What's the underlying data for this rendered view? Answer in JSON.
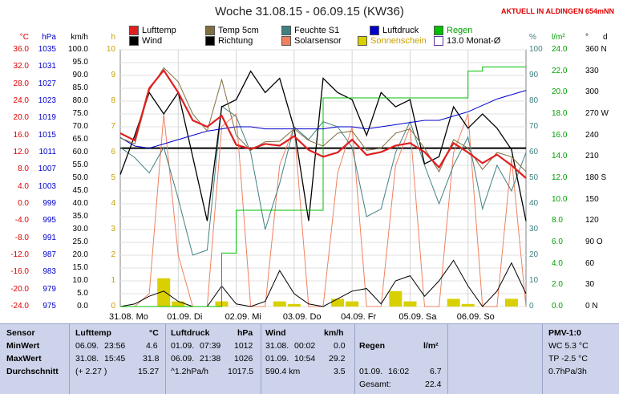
{
  "header": {
    "title": "Woche 31.08.15 - 06.09.15 (KW36)",
    "live": "AKTUELL IN ALDINGEN 654mNN"
  },
  "legend": [
    {
      "label": "Lufttemp",
      "color": "#e02020",
      "style": "fill"
    },
    {
      "label": "Temp 5cm",
      "color": "#807040",
      "style": "fill"
    },
    {
      "label": "Feuchte S1",
      "color": "#408080",
      "style": "fill"
    },
    {
      "label": "Luftdruck",
      "color": "#0000cc",
      "style": "fill"
    },
    {
      "label": "Regen",
      "color": "#00c000",
      "style": "fill"
    },
    {
      "label": "Wind",
      "color": "#000000",
      "style": "fill"
    },
    {
      "label": "Richtung",
      "color": "#000000",
      "style": "fill"
    },
    {
      "label": "Solarsensor",
      "color": "#f08060",
      "style": "fill"
    },
    {
      "label": "Sonnenschein",
      "color": "#d8d000",
      "style": "fill"
    },
    {
      "label": "13.0 Monat-Ø",
      "color": "#6030a0",
      "style": "outline"
    }
  ],
  "axes": {
    "celsius": {
      "unit": "°C",
      "color": "#e00000",
      "ticks": [
        "36.0",
        "32.0",
        "28.0",
        "24.0",
        "20.0",
        "16.0",
        "12.0",
        "8.0",
        "4.0",
        "0.0",
        "-4.0",
        "-8.0",
        "-12.0",
        "-16.0",
        "-20.0",
        "-24.0"
      ]
    },
    "hpa": {
      "unit": "hPa",
      "color": "#0000cc",
      "ticks": [
        "1035",
        "1031",
        "1027",
        "1023",
        "1019",
        "1015",
        "1011",
        "1007",
        "1003",
        "999",
        "995",
        "991",
        "987",
        "983",
        "979",
        "975"
      ]
    },
    "kmh": {
      "unit": "km/h",
      "color": "#000000",
      "ticks": [
        "100.0",
        "95.0",
        "90.0",
        "85.0",
        "80.0",
        "75.0",
        "70.0",
        "65.0",
        "60.0",
        "55.0",
        "50.0",
        "45.0",
        "40.0",
        "35.0",
        "30.0",
        "25.0",
        "20.0",
        "15.0",
        "10.0",
        "5.0",
        "0.0"
      ]
    },
    "hours": {
      "unit": "h",
      "color": "#c8a000",
      "ticks": [
        "10",
        "9",
        "8",
        "7",
        "6",
        "5",
        "4",
        "3",
        "2",
        "1",
        "0"
      ]
    },
    "percent": {
      "unit": "%",
      "color": "#408080",
      "ticks": [
        "100",
        "90",
        "80",
        "70",
        "60",
        "50",
        "40",
        "30",
        "20",
        "10",
        "0"
      ]
    },
    "rain": {
      "unit": "l/m²",
      "color": "#00a000",
      "ticks": [
        "24.0",
        "22.0",
        "20.0",
        "18.0",
        "16.0",
        "14.0",
        "12.0",
        "10.0",
        "8.0",
        "6.0",
        "4.0",
        "2.0",
        "0.0"
      ]
    },
    "direction": {
      "unit": "°",
      "color": "#000000",
      "ticks": [
        "360 N",
        "330",
        "300",
        "270 W",
        "240",
        "210",
        "180 S",
        "150",
        "120",
        "90 O",
        "60",
        "30",
        "0 N"
      ]
    },
    "direction_right": {
      "unit": "d",
      "color": "#000000",
      "ticks": []
    }
  },
  "x_labels": [
    "31.08. Mo",
    "01.09. Di",
    "02.09. Mi",
    "03.09. Do",
    "04.09. Fr",
    "05.09. Sa",
    "06.09. So"
  ],
  "chart_data": {
    "type": "line",
    "title": "Woche 31.08.15 - 06.09.15 (KW36)",
    "x": [
      0,
      0.25,
      0.5,
      0.75,
      1,
      1.25,
      1.5,
      1.75,
      2,
      2.25,
      2.5,
      2.75,
      3,
      3.25,
      3.5,
      3.75,
      4,
      4.25,
      4.5,
      4.75,
      5,
      5.25,
      5.5,
      5.75,
      6,
      6.25,
      6.5,
      6.75,
      7
    ],
    "series": [
      {
        "name": "Lufttemp",
        "unit": "°C",
        "color": "#e02020",
        "values": [
          16.5,
          14.8,
          27.0,
          31.2,
          26.0,
          19.5,
          18.0,
          20.6,
          13.8,
          12.8,
          14.0,
          13.6,
          15.8,
          12.6,
          11.0,
          12.0,
          15.0,
          11.4,
          12.1,
          13.6,
          14.2,
          12.1,
          8.5,
          14.2,
          12.0,
          9.5,
          11.5,
          9.0,
          6.0
        ]
      },
      {
        "name": "Temp 5cm",
        "unit": "°C",
        "color": "#807040",
        "values": [
          15.4,
          14.0,
          26.5,
          31.8,
          28.5,
          21.0,
          17.0,
          29.0,
          16.0,
          12.5,
          14.5,
          14.6,
          17.5,
          14.8,
          13.5,
          16.5,
          17.0,
          12.5,
          13.0,
          16.5,
          17.5,
          13.0,
          7.5,
          15.0,
          13.0,
          8.0,
          12.0,
          11.0,
          7.5
        ]
      },
      {
        "name": "Feuchte S1",
        "unit": "%",
        "color": "#408080",
        "values": [
          62,
          58,
          52,
          62,
          42,
          20,
          22,
          78,
          74,
          60,
          30,
          48,
          70,
          65,
          72,
          70,
          62,
          35,
          38,
          60,
          72,
          55,
          40,
          55,
          66,
          38,
          55,
          45,
          60
        ]
      },
      {
        "name": "Luftdruck",
        "unit": "hPa",
        "color": "#0000cc",
        "values": [
          1014.5,
          1012.5,
          1012,
          1013,
          1014,
          1015,
          1016,
          1016.5,
          1017,
          1017,
          1016.5,
          1016.5,
          1016.5,
          1016.5,
          1016.5,
          1017,
          1017,
          1016.5,
          1017,
          1017.5,
          1018,
          1018.5,
          1018.5,
          1019.5,
          1020.5,
          1022,
          1023.5,
          1024.5,
          1025.5
        ]
      },
      {
        "name": "Regen",
        "unit": "l/m²",
        "color": "#00c000",
        "values": [
          0,
          0,
          0,
          0,
          0,
          0,
          0,
          5.0,
          9.0,
          9.0,
          9.0,
          9.0,
          9.0,
          9.0,
          19.5,
          19.5,
          19.5,
          19.5,
          19.5,
          19.5,
          19.5,
          19.5,
          19.5,
          19.5,
          22.0,
          22.4,
          22.4,
          22.4,
          22.4
        ]
      },
      {
        "name": "Wind",
        "unit": "km/h",
        "color": "#000000",
        "values": [
          0,
          1,
          4,
          6,
          2,
          0,
          0,
          8,
          1,
          0,
          2,
          14,
          5,
          1,
          0,
          3,
          6,
          7,
          1,
          10,
          12,
          4,
          10,
          18,
          8,
          0,
          6,
          17,
          5
        ]
      },
      {
        "name": "Richtung",
        "unit": "°",
        "color": "#000000",
        "values": [
          185,
          240,
          300,
          270,
          300,
          210,
          120,
          280,
          290,
          330,
          300,
          320,
          250,
          120,
          320,
          300,
          290,
          240,
          300,
          280,
          290,
          200,
          210,
          280,
          250,
          270,
          250,
          220,
          120
        ]
      },
      {
        "name": "Solarsensor",
        "unit": "%",
        "color": "#f08060",
        "values": [
          0,
          0,
          5,
          75,
          20,
          0,
          0,
          70,
          75,
          0,
          0,
          55,
          70,
          0,
          0,
          52,
          70,
          0,
          0,
          55,
          70,
          0,
          0,
          60,
          75,
          0,
          0,
          58,
          0
        ]
      },
      {
        "name": "Sonnenschein",
        "unit": "h",
        "color": "#d8d000",
        "type": "bar",
        "values": [
          0,
          0,
          0,
          1.1,
          0.2,
          0,
          0,
          0.2,
          0,
          0,
          0,
          0.2,
          0.1,
          0,
          0,
          0.3,
          0.2,
          0,
          0,
          0.6,
          0.2,
          0,
          0,
          0.3,
          0.1,
          0,
          0,
          0.3,
          0
        ]
      }
    ],
    "reference_lines": [
      {
        "name": "13.0 Monat-Ø",
        "value": 13.0,
        "unit": "°C",
        "color": "#000000"
      }
    ],
    "ylim_celsius": [
      -24,
      36
    ],
    "ylim_hpa": [
      975,
      1035
    ],
    "ylim_kmh": [
      0,
      100
    ],
    "ylim_hours": [
      0,
      10
    ],
    "ylim_percent": [
      0,
      100
    ],
    "ylim_rain": [
      0,
      24
    ],
    "ylim_direction": [
      0,
      360
    ],
    "grid": true
  },
  "stats": {
    "labels": [
      "Sensor",
      "MinWert",
      "MaxWert",
      "Durchschnitt"
    ],
    "temp": {
      "header": "Lufttemp",
      "unit": "°C",
      "min_date": "06.09.",
      "min_time": "23:56",
      "min": "4.6",
      "max_date": "31.08.",
      "max_time": "15:45",
      "max": "31.8",
      "avg_extra": "(+ 2.27 )",
      "avg": "15.27"
    },
    "pressure": {
      "header": "Luftdruck",
      "unit": "hPa",
      "min_date": "01.09.",
      "min_time": "07:39",
      "min": "1012",
      "max_date": "06.09.",
      "max_time": "21:38",
      "max": "1026",
      "avg_extra": "^1.2hPa/h",
      "avg": "1017.5"
    },
    "wind": {
      "header": "Wind",
      "unit": "km/h",
      "min_date": "31.08.",
      "min_time": "00:02",
      "min": "0.0",
      "max_date": "01.09.",
      "max_time": "10:54",
      "max": "29.2",
      "avg_extra": "590.4 km",
      "avg": "3.5"
    },
    "rain": {
      "header": "Regen",
      "unit": "l/m²",
      "max_date": "01.09.",
      "max_time": "16:02",
      "max": "6.7",
      "total_label": "Gesamt:",
      "total": "22.4"
    },
    "pmv": {
      "header": "PMV-1:0",
      "wc": "WC 5.3 °C",
      "tp": "TP -2.5 °C",
      "trend": "0.7hPa/3h"
    }
  }
}
